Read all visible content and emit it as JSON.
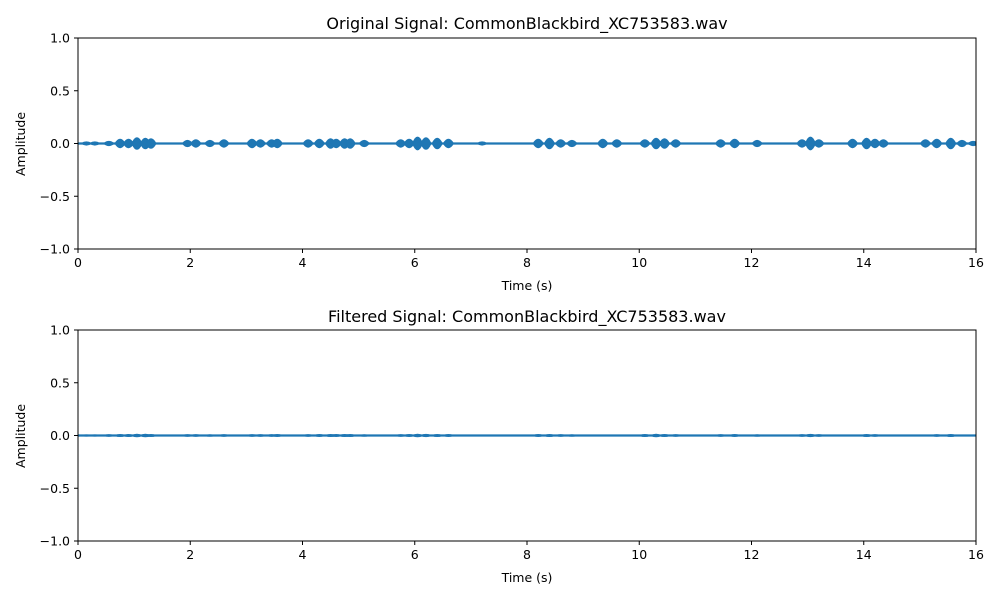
{
  "chart_data": [
    {
      "type": "line",
      "title": "Original Signal: CommonBlackbird_XC753583.wav",
      "xlabel": "Time (s)",
      "ylabel": "Amplitude",
      "xlim": [
        0,
        16
      ],
      "ylim": [
        -1.0,
        1.0
      ],
      "xticks": [
        0,
        2,
        4,
        6,
        8,
        10,
        12,
        14,
        16
      ],
      "xtick_labels": [
        "0",
        "2",
        "4",
        "6",
        "8",
        "10",
        "12",
        "14",
        "16"
      ],
      "yticks": [
        -1.0,
        -0.5,
        0.0,
        0.5,
        1.0
      ],
      "ytick_labels": [
        "−1.0",
        "−0.5",
        "0.0",
        "0.5",
        "1.0"
      ],
      "grid": false,
      "series_color": "#1f77b4",
      "series": [
        {
          "name": "",
          "x": [
            0.15,
            0.3,
            0.55,
            0.75,
            0.9,
            1.05,
            1.2,
            1.3,
            1.95,
            2.1,
            2.35,
            2.6,
            3.1,
            3.25,
            3.45,
            3.55,
            4.1,
            4.3,
            4.5,
            4.6,
            4.75,
            4.85,
            5.1,
            5.75,
            5.9,
            6.05,
            6.2,
            6.4,
            6.6,
            7.2,
            8.2,
            8.4,
            8.6,
            8.8,
            9.35,
            9.6,
            10.1,
            10.3,
            10.45,
            10.65,
            11.45,
            11.7,
            12.1,
            12.9,
            13.05,
            13.2,
            13.8,
            14.05,
            14.2,
            14.35,
            15.1,
            15.3,
            15.55,
            15.75,
            15.95
          ],
          "amplitude": [
            0.015,
            0.015,
            0.02,
            0.04,
            0.04,
            0.055,
            0.05,
            0.045,
            0.03,
            0.035,
            0.03,
            0.035,
            0.04,
            0.035,
            0.035,
            0.04,
            0.035,
            0.04,
            0.045,
            0.04,
            0.045,
            0.045,
            0.03,
            0.035,
            0.04,
            0.06,
            0.055,
            0.05,
            0.04,
            0.015,
            0.04,
            0.05,
            0.035,
            0.03,
            0.04,
            0.035,
            0.035,
            0.05,
            0.045,
            0.035,
            0.035,
            0.04,
            0.03,
            0.035,
            0.06,
            0.035,
            0.04,
            0.05,
            0.04,
            0.035,
            0.035,
            0.04,
            0.05,
            0.03,
            0.02
          ]
        }
      ]
    },
    {
      "type": "line",
      "title": "Filtered Signal: CommonBlackbird_XC753583.wav",
      "xlabel": "Time (s)",
      "ylabel": "Amplitude",
      "xlim": [
        0,
        16
      ],
      "ylim": [
        -1.0,
        1.0
      ],
      "xticks": [
        0,
        2,
        4,
        6,
        8,
        10,
        12,
        14,
        16
      ],
      "xtick_labels": [
        "0",
        "2",
        "4",
        "6",
        "8",
        "10",
        "12",
        "14",
        "16"
      ],
      "yticks": [
        -1.0,
        -0.5,
        0.0,
        0.5,
        1.0
      ],
      "ytick_labels": [
        "−1.0",
        "−0.5",
        "0.0",
        "0.5",
        "1.0"
      ],
      "grid": false,
      "series_color": "#1f77b4",
      "series": [
        {
          "name": "",
          "x": [
            0.15,
            0.3,
            0.55,
            0.75,
            0.9,
            1.05,
            1.2,
            1.3,
            1.95,
            2.1,
            2.35,
            2.6,
            3.1,
            3.25,
            3.45,
            3.55,
            4.1,
            4.3,
            4.5,
            4.6,
            4.75,
            4.85,
            5.1,
            5.75,
            5.9,
            6.05,
            6.2,
            6.4,
            6.6,
            8.2,
            8.4,
            8.6,
            8.8,
            10.1,
            10.3,
            10.45,
            10.65,
            11.45,
            11.7,
            12.1,
            12.9,
            13.05,
            13.2,
            14.05,
            14.2,
            15.3,
            15.55
          ],
          "amplitude": [
            0.006,
            0.006,
            0.008,
            0.01,
            0.01,
            0.012,
            0.012,
            0.01,
            0.008,
            0.008,
            0.007,
            0.008,
            0.008,
            0.008,
            0.008,
            0.009,
            0.008,
            0.009,
            0.01,
            0.009,
            0.01,
            0.01,
            0.007,
            0.008,
            0.009,
            0.012,
            0.011,
            0.01,
            0.009,
            0.009,
            0.01,
            0.008,
            0.007,
            0.01,
            0.012,
            0.01,
            0.008,
            0.008,
            0.009,
            0.007,
            0.008,
            0.011,
            0.008,
            0.01,
            0.008,
            0.008,
            0.01
          ]
        }
      ]
    }
  ]
}
